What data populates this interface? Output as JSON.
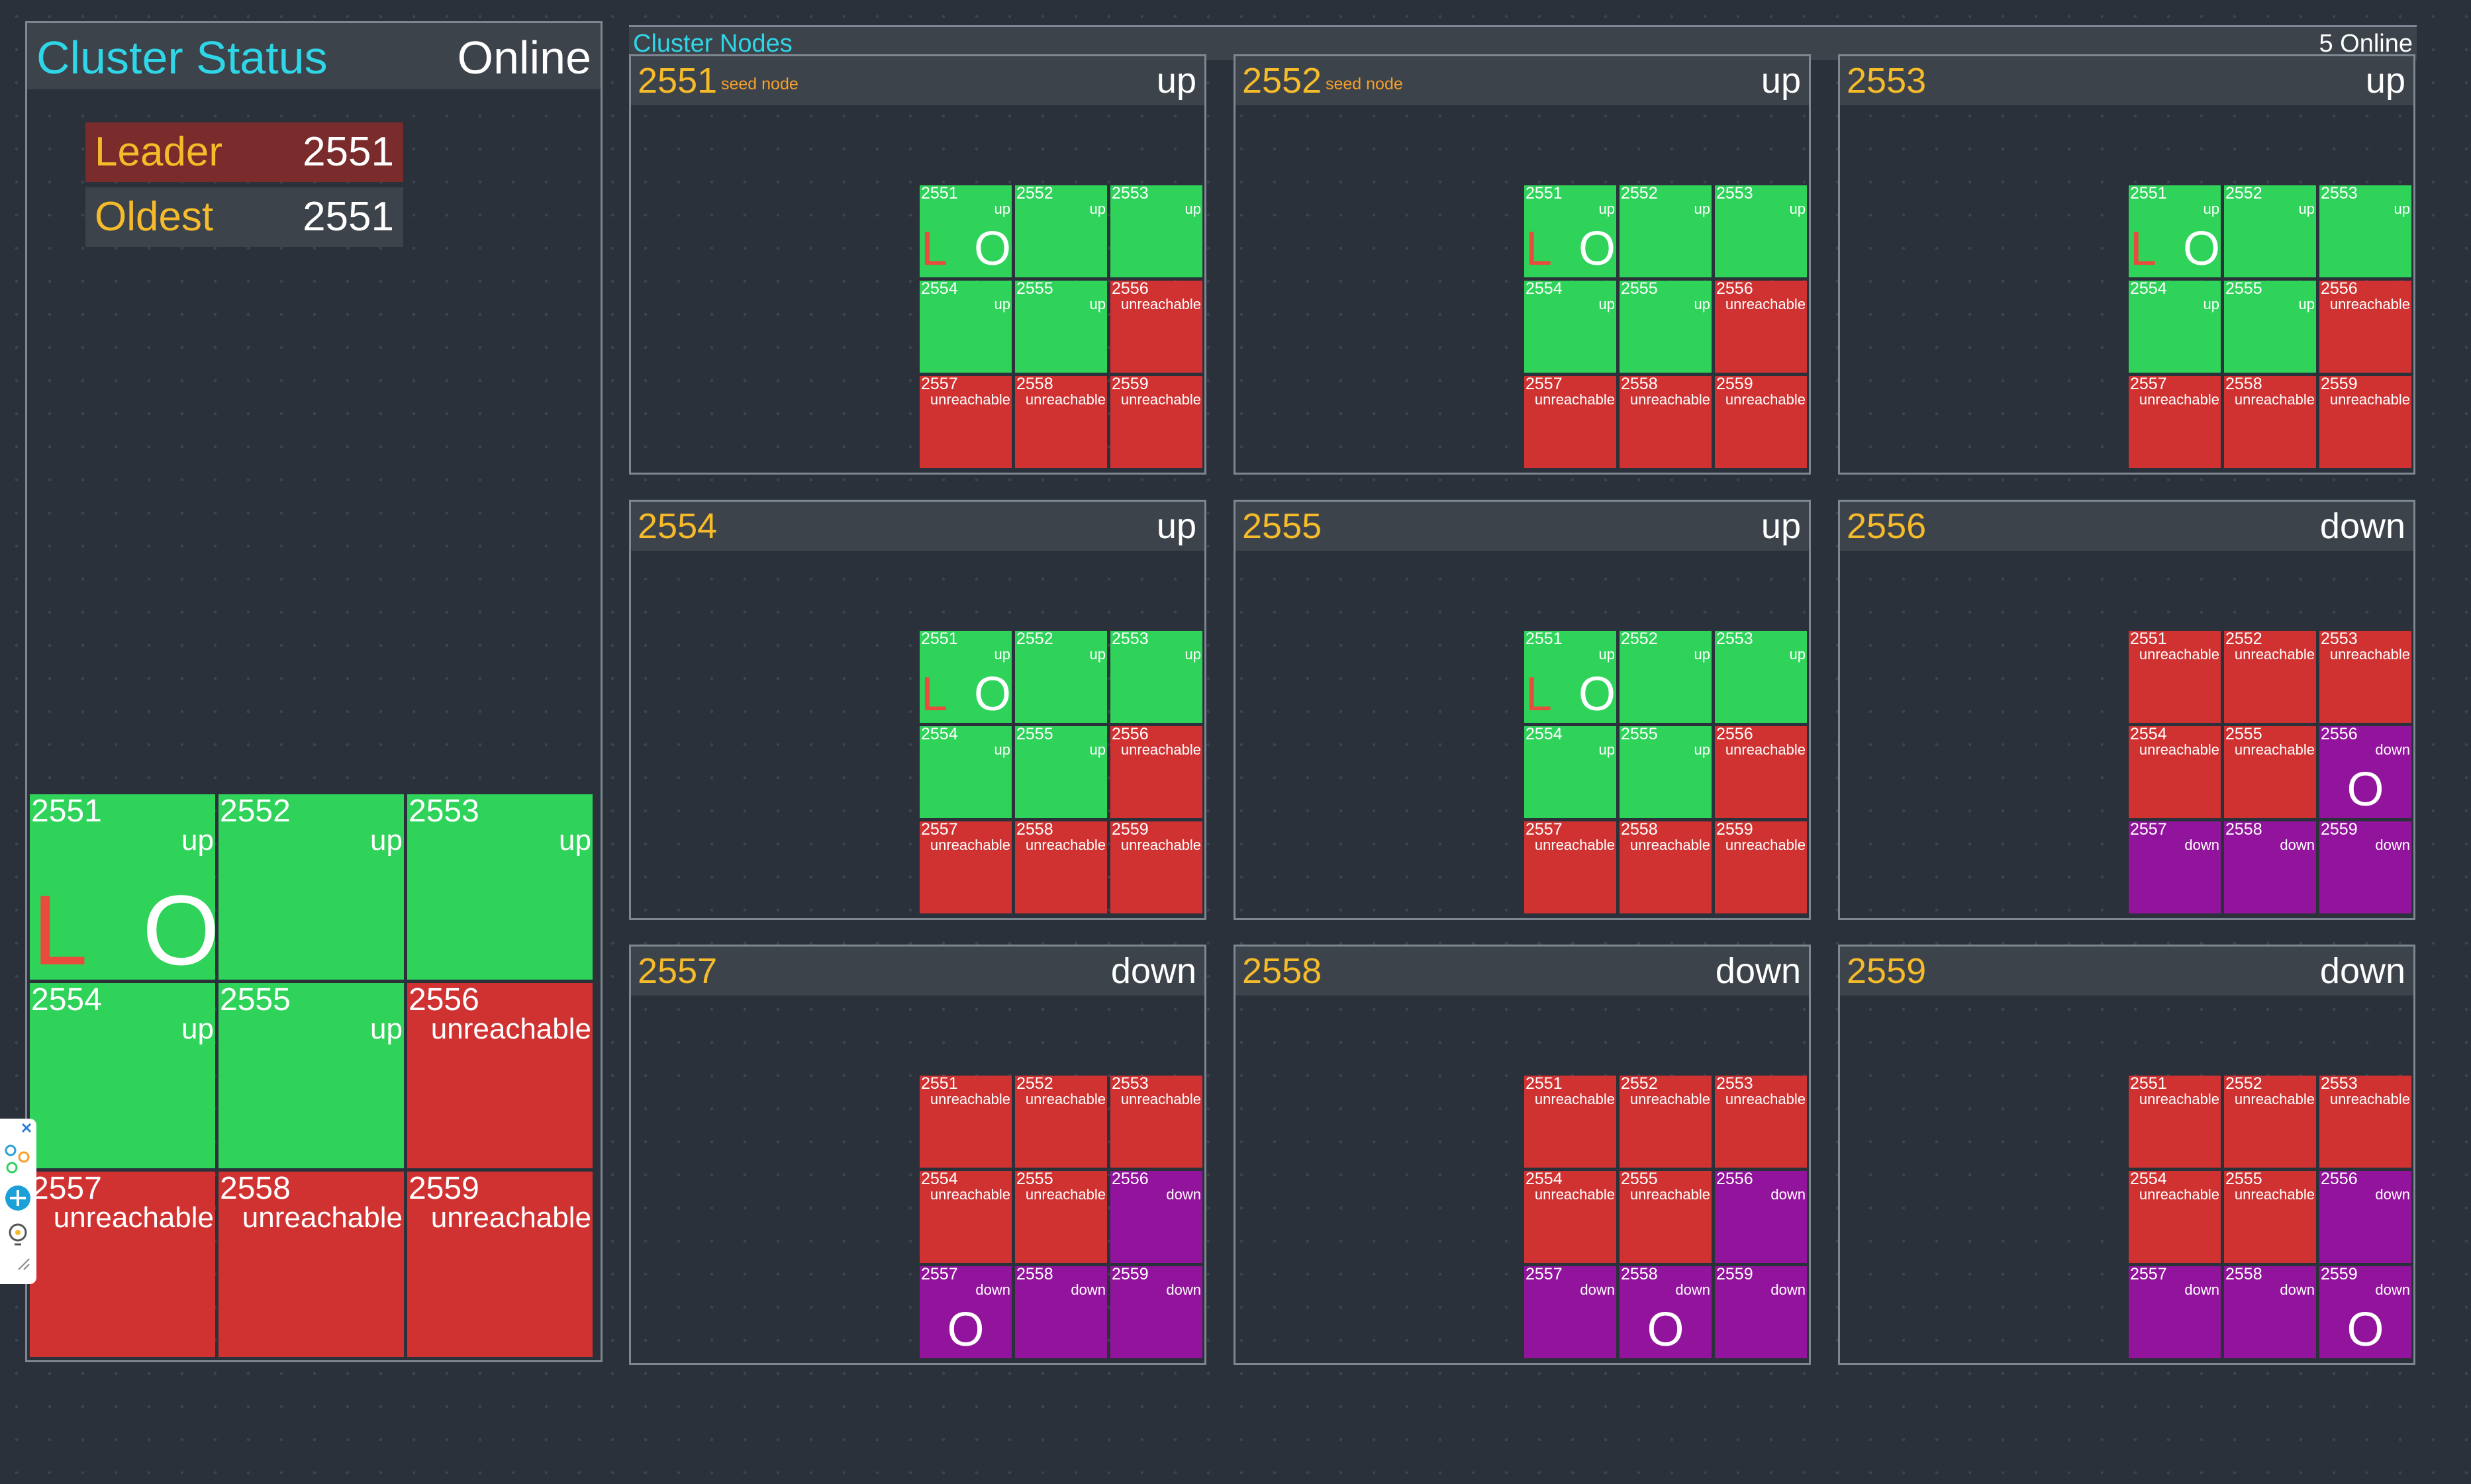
{
  "status_panel": {
    "title": "Cluster Status",
    "state": "Online",
    "leader_label": "Leader",
    "leader_value": "2551",
    "oldest_label": "Oldest",
    "oldest_value": "2551"
  },
  "nodes_panel": {
    "title": "Cluster Nodes",
    "online_count": "5 Online"
  },
  "colors": {
    "up": "#2fd35a",
    "unreachable": "#d03232",
    "down": "#92149c",
    "accent_cyan": "#2fd6e8",
    "accent_yellow": "#f6bb2a",
    "leader_badge": "#7a2b2b",
    "oldest_badge": "#3d434a"
  },
  "summary_grid": [
    {
      "num": "2551",
      "state": "up",
      "L": "L",
      "O": "O"
    },
    {
      "num": "2552",
      "state": "up"
    },
    {
      "num": "2553",
      "state": "up"
    },
    {
      "num": "2554",
      "state": "up"
    },
    {
      "num": "2555",
      "state": "up"
    },
    {
      "num": "2556",
      "state": "unreachable"
    },
    {
      "num": "2557",
      "state": "unreachable"
    },
    {
      "num": "2558",
      "state": "unreachable"
    },
    {
      "num": "2559",
      "state": "unreachable"
    }
  ],
  "nodes": [
    {
      "num": "2551",
      "seed": "seed node",
      "state": "up",
      "cells": [
        [
          "2551",
          "up",
          "L",
          "O"
        ],
        [
          "2552",
          "up"
        ],
        [
          "2553",
          "up"
        ],
        [
          "2554",
          "up"
        ],
        [
          "2555",
          "up"
        ],
        [
          "2556",
          "unreachable"
        ],
        [
          "2557",
          "unreachable"
        ],
        [
          "2558",
          "unreachable"
        ],
        [
          "2559",
          "unreachable"
        ]
      ]
    },
    {
      "num": "2552",
      "seed": "seed node",
      "state": "up",
      "cells": [
        [
          "2551",
          "up",
          "L",
          "O"
        ],
        [
          "2552",
          "up"
        ],
        [
          "2553",
          "up"
        ],
        [
          "2554",
          "up"
        ],
        [
          "2555",
          "up"
        ],
        [
          "2556",
          "unreachable"
        ],
        [
          "2557",
          "unreachable"
        ],
        [
          "2558",
          "unreachable"
        ],
        [
          "2559",
          "unreachable"
        ]
      ]
    },
    {
      "num": "2553",
      "seed": "",
      "state": "up",
      "cells": [
        [
          "2551",
          "up",
          "L",
          "O"
        ],
        [
          "2552",
          "up"
        ],
        [
          "2553",
          "up"
        ],
        [
          "2554",
          "up"
        ],
        [
          "2555",
          "up"
        ],
        [
          "2556",
          "unreachable"
        ],
        [
          "2557",
          "unreachable"
        ],
        [
          "2558",
          "unreachable"
        ],
        [
          "2559",
          "unreachable"
        ]
      ]
    },
    {
      "num": "2554",
      "seed": "",
      "state": "up",
      "cells": [
        [
          "2551",
          "up",
          "L",
          "O"
        ],
        [
          "2552",
          "up"
        ],
        [
          "2553",
          "up"
        ],
        [
          "2554",
          "up"
        ],
        [
          "2555",
          "up"
        ],
        [
          "2556",
          "unreachable"
        ],
        [
          "2557",
          "unreachable"
        ],
        [
          "2558",
          "unreachable"
        ],
        [
          "2559",
          "unreachable"
        ]
      ]
    },
    {
      "num": "2555",
      "seed": "",
      "state": "up",
      "cells": [
        [
          "2551",
          "up",
          "L",
          "O"
        ],
        [
          "2552",
          "up"
        ],
        [
          "2553",
          "up"
        ],
        [
          "2554",
          "up"
        ],
        [
          "2555",
          "up"
        ],
        [
          "2556",
          "unreachable"
        ],
        [
          "2557",
          "unreachable"
        ],
        [
          "2558",
          "unreachable"
        ],
        [
          "2559",
          "unreachable"
        ]
      ]
    },
    {
      "num": "2556",
      "seed": "",
      "state": "down",
      "cells": [
        [
          "2551",
          "unreachable"
        ],
        [
          "2552",
          "unreachable"
        ],
        [
          "2553",
          "unreachable"
        ],
        [
          "2554",
          "unreachable"
        ],
        [
          "2555",
          "unreachable"
        ],
        [
          "2556",
          "down",
          "",
          "O"
        ],
        [
          "2557",
          "down"
        ],
        [
          "2558",
          "down"
        ],
        [
          "2559",
          "down"
        ]
      ]
    },
    {
      "num": "2557",
      "seed": "",
      "state": "down",
      "cells": [
        [
          "2551",
          "unreachable"
        ],
        [
          "2552",
          "unreachable"
        ],
        [
          "2553",
          "unreachable"
        ],
        [
          "2554",
          "unreachable"
        ],
        [
          "2555",
          "unreachable"
        ],
        [
          "2556",
          "down"
        ],
        [
          "2557",
          "down",
          "",
          "O"
        ],
        [
          "2558",
          "down"
        ],
        [
          "2559",
          "down"
        ]
      ]
    },
    {
      "num": "2558",
      "seed": "",
      "state": "down",
      "cells": [
        [
          "2551",
          "unreachable"
        ],
        [
          "2552",
          "unreachable"
        ],
        [
          "2553",
          "unreachable"
        ],
        [
          "2554",
          "unreachable"
        ],
        [
          "2555",
          "unreachable"
        ],
        [
          "2556",
          "down"
        ],
        [
          "2557",
          "down"
        ],
        [
          "2558",
          "down",
          "",
          "O"
        ],
        [
          "2559",
          "down"
        ]
      ]
    },
    {
      "num": "2559",
      "seed": "",
      "state": "down",
      "cells": [
        [
          "2551",
          "unreachable"
        ],
        [
          "2552",
          "unreachable"
        ],
        [
          "2553",
          "unreachable"
        ],
        [
          "2554",
          "unreachable"
        ],
        [
          "2555",
          "unreachable"
        ],
        [
          "2556",
          "down"
        ],
        [
          "2557",
          "down"
        ],
        [
          "2558",
          "down"
        ],
        [
          "2559",
          "down",
          "",
          "O"
        ]
      ]
    }
  ],
  "toolbar": {
    "icons": [
      "close-icon",
      "network-icon",
      "add-icon",
      "lightbulb-icon",
      "resize-icon"
    ]
  }
}
